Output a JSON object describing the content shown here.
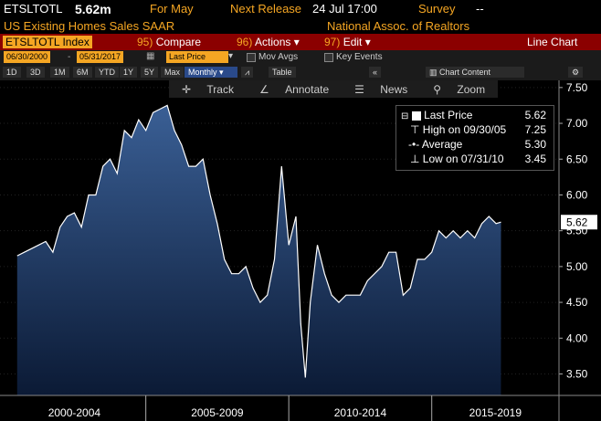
{
  "header": {
    "ticker": "ETSLTOTL",
    "price": "5.62m",
    "period": "For May",
    "next_release_label": "Next Release",
    "next_release_value": "24 Jul 17:00",
    "survey_label": "Survey",
    "survey_value": "--",
    "description": "US Existing Homes Sales SAAR",
    "source": "National Assoc. of Realtors"
  },
  "menubar": {
    "security": "ETSLTOTL Index",
    "compare_num": "95)",
    "compare_label": "Compare",
    "actions_num": "96)",
    "actions_label": "Actions",
    "edit_num": "97)",
    "edit_label": "Edit",
    "view": "Line Chart"
  },
  "controls": {
    "start_date": "06/30/2000",
    "end_date": "05/31/2017",
    "price_field": "Last Price",
    "mov_avgs": "Mov Avgs",
    "key_events": "Key Events"
  },
  "periods": {
    "buttons": [
      "1D",
      "3D",
      "1M",
      "6M",
      "YTD",
      "1Y",
      "5Y",
      "Max"
    ],
    "frequency": "Monthly",
    "table": "Table",
    "collapse": "«",
    "chart_content": "Chart Content"
  },
  "tools": {
    "track": "Track",
    "annotate": "Annotate",
    "news": "News",
    "zoom": "Zoom"
  },
  "legend": {
    "last_label": "Last Price",
    "last_value": "5.62",
    "high_label": "High on 09/30/05",
    "high_value": "7.25",
    "avg_label": "Average",
    "avg_value": "5.30",
    "low_label": "Low on 07/31/10",
    "low_value": "3.45"
  },
  "colors": {
    "amber": "#f5a623",
    "brand_red": "#8b0000",
    "area_top": "#3a5f95",
    "area_bottom": "#0b1a35",
    "line": "#ffffff"
  },
  "chart_data": {
    "type": "area",
    "title": "",
    "ylim": [
      3.2,
      7.6
    ],
    "yticks": [
      "7.50",
      "7.00",
      "6.50",
      "6.00",
      "5.50",
      "5.00",
      "4.50",
      "4.00",
      "3.50"
    ],
    "yticks_values": [
      7.5,
      7.0,
      6.5,
      6.0,
      5.5,
      5.0,
      4.5,
      4.0,
      3.5
    ],
    "x_period_labels": [
      "2000-2004",
      "2005-2009",
      "2010-2014",
      "2015-2019"
    ],
    "x_period_bounds": [
      2000.0,
      2005.0,
      2010.0,
      2015.0,
      2020.0
    ],
    "last_value_label": "5.62",
    "series": [
      {
        "values_by_year": [
          [
            2000.5,
            5.15
          ],
          [
            2000.75,
            5.2
          ],
          [
            2001.0,
            5.25
          ],
          [
            2001.25,
            5.3
          ],
          [
            2001.5,
            5.35
          ],
          [
            2001.75,
            5.2
          ],
          [
            2002.0,
            5.55
          ],
          [
            2002.25,
            5.7
          ],
          [
            2002.5,
            5.75
          ],
          [
            2002.75,
            5.55
          ],
          [
            2003.0,
            6.0
          ],
          [
            2003.25,
            6.0
          ],
          [
            2003.5,
            6.4
          ],
          [
            2003.75,
            6.5
          ],
          [
            2004.0,
            6.3
          ],
          [
            2004.25,
            6.9
          ],
          [
            2004.5,
            6.8
          ],
          [
            2004.75,
            7.05
          ],
          [
            2005.0,
            6.9
          ],
          [
            2005.25,
            7.15
          ],
          [
            2005.5,
            7.2
          ],
          [
            2005.75,
            7.25
          ],
          [
            2006.0,
            6.9
          ],
          [
            2006.25,
            6.7
          ],
          [
            2006.5,
            6.4
          ],
          [
            2006.75,
            6.4
          ],
          [
            2007.0,
            6.5
          ],
          [
            2007.25,
            6.0
          ],
          [
            2007.5,
            5.6
          ],
          [
            2007.75,
            5.1
          ],
          [
            2008.0,
            4.9
          ],
          [
            2008.25,
            4.9
          ],
          [
            2008.5,
            5.0
          ],
          [
            2008.75,
            4.7
          ],
          [
            2009.0,
            4.5
          ],
          [
            2009.25,
            4.6
          ],
          [
            2009.5,
            5.1
          ],
          [
            2009.75,
            6.4
          ],
          [
            2010.0,
            5.3
          ],
          [
            2010.25,
            5.7
          ],
          [
            2010.42,
            4.2
          ],
          [
            2010.58,
            3.45
          ],
          [
            2010.75,
            4.5
          ],
          [
            2011.0,
            5.3
          ],
          [
            2011.25,
            4.9
          ],
          [
            2011.5,
            4.6
          ],
          [
            2011.75,
            4.5
          ],
          [
            2012.0,
            4.6
          ],
          [
            2012.25,
            4.6
          ],
          [
            2012.5,
            4.6
          ],
          [
            2012.75,
            4.8
          ],
          [
            2013.0,
            4.9
          ],
          [
            2013.25,
            5.0
          ],
          [
            2013.5,
            5.2
          ],
          [
            2013.75,
            5.2
          ],
          [
            2014.0,
            4.6
          ],
          [
            2014.25,
            4.7
          ],
          [
            2014.5,
            5.1
          ],
          [
            2014.75,
            5.1
          ],
          [
            2015.0,
            5.2
          ],
          [
            2015.25,
            5.5
          ],
          [
            2015.5,
            5.4
          ],
          [
            2015.75,
            5.5
          ],
          [
            2016.0,
            5.4
          ],
          [
            2016.25,
            5.5
          ],
          [
            2016.5,
            5.4
          ],
          [
            2016.75,
            5.6
          ],
          [
            2017.0,
            5.7
          ],
          [
            2017.25,
            5.6
          ],
          [
            2017.42,
            5.62
          ]
        ]
      }
    ]
  }
}
